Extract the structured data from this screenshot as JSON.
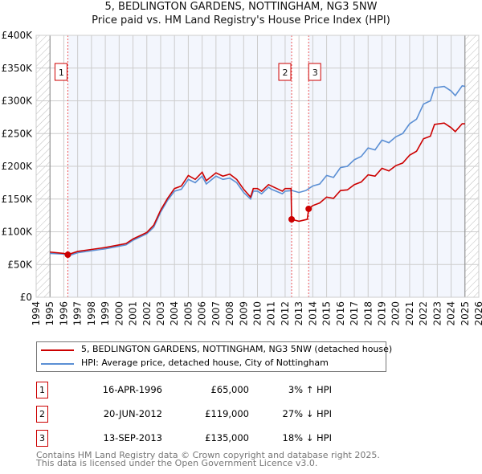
{
  "chart_data": {
    "type": "line",
    "title": "5, BEDLINGTON GARDENS, NOTTINGHAM, NG3 5NW",
    "subtitle": "Price paid vs. HM Land Registry's House Price Index (HPI)",
    "xlabel": "",
    "ylabel": "",
    "xlim": [
      1994,
      2026
    ],
    "ylim": [
      0,
      400000
    ],
    "x_ticks": [
      "1994",
      "1995",
      "1996",
      "1997",
      "1998",
      "1999",
      "2000",
      "2001",
      "2002",
      "2003",
      "2004",
      "2005",
      "2006",
      "2007",
      "2008",
      "2009",
      "2010",
      "2011",
      "2012",
      "2013",
      "2014",
      "2015",
      "2016",
      "2017",
      "2018",
      "2019",
      "2020",
      "2021",
      "2022",
      "2023",
      "2024",
      "2025",
      "2026"
    ],
    "y_ticks": [
      {
        "v": 0,
        "label": "£0"
      },
      {
        "v": 50000,
        "label": "£50K"
      },
      {
        "v": 100000,
        "label": "£100K"
      },
      {
        "v": 150000,
        "label": "£150K"
      },
      {
        "v": 200000,
        "label": "£200K"
      },
      {
        "v": 250000,
        "label": "£250K"
      },
      {
        "v": 300000,
        "label": "£300K"
      },
      {
        "v": 350000,
        "label": "£350K"
      },
      {
        "v": 400000,
        "label": "£400K"
      }
    ],
    "data_range": [
      1995,
      2025
    ],
    "grid": true,
    "series": [
      {
        "name": "5, BEDLINGTON GARDENS, NOTTINGHAM, NG3 5NW (detached house)",
        "color": "#cc0000",
        "points": [
          [
            1995,
            69
          ],
          [
            1996,
            67
          ],
          [
            1996.29,
            65
          ],
          [
            1997,
            70
          ],
          [
            1998,
            73
          ],
          [
            1999,
            76
          ],
          [
            2000,
            80
          ],
          [
            2000.5,
            82
          ],
          [
            2001,
            89
          ],
          [
            2002,
            99
          ],
          [
            2002.5,
            110
          ],
          [
            2003,
            133
          ],
          [
            2003.5,
            151
          ],
          [
            2004,
            166
          ],
          [
            2004.5,
            170
          ],
          [
            2005,
            186
          ],
          [
            2005.5,
            180
          ],
          [
            2006,
            191
          ],
          [
            2006.3,
            178
          ],
          [
            2007,
            190
          ],
          [
            2007.5,
            185
          ],
          [
            2008,
            188
          ],
          [
            2008.5,
            180
          ],
          [
            2009,
            165
          ],
          [
            2009.5,
            153
          ],
          [
            2009.7,
            166
          ],
          [
            2010,
            166
          ],
          [
            2010.3,
            162
          ],
          [
            2010.8,
            172
          ],
          [
            2011,
            170
          ],
          [
            2011.8,
            162
          ],
          [
            2012,
            166
          ],
          [
            2012.43,
            166
          ],
          [
            2012.47,
            119
          ],
          [
            2013,
            116
          ],
          [
            2013.6,
            119
          ],
          [
            2013.7,
            135
          ],
          [
            2014,
            140
          ],
          [
            2014.5,
            144
          ],
          [
            2015,
            153
          ],
          [
            2015.5,
            151
          ],
          [
            2016,
            163
          ],
          [
            2016.5,
            164
          ],
          [
            2017,
            172
          ],
          [
            2017.5,
            176
          ],
          [
            2018,
            187
          ],
          [
            2018.5,
            185
          ],
          [
            2019,
            197
          ],
          [
            2019.5,
            193
          ],
          [
            2020,
            201
          ],
          [
            2020.5,
            205
          ],
          [
            2021,
            217
          ],
          [
            2021.5,
            223
          ],
          [
            2022,
            242
          ],
          [
            2022.5,
            246
          ],
          [
            2022.8,
            264
          ],
          [
            2023.5,
            266
          ],
          [
            2024,
            259
          ],
          [
            2024.3,
            253
          ],
          [
            2024.8,
            265
          ],
          [
            2025,
            265
          ]
        ]
      },
      {
        "name": "HPI: Average price, detached house, City of Nottingham",
        "color": "#5b8fd4",
        "points": [
          [
            1995,
            67
          ],
          [
            1996,
            66
          ],
          [
            1996.29,
            63
          ],
          [
            1997,
            68
          ],
          [
            1998,
            71
          ],
          [
            1999,
            74
          ],
          [
            2000,
            78
          ],
          [
            2000.5,
            80
          ],
          [
            2001,
            87
          ],
          [
            2002,
            97
          ],
          [
            2002.5,
            107
          ],
          [
            2003,
            130
          ],
          [
            2003.5,
            148
          ],
          [
            2004,
            162
          ],
          [
            2004.5,
            165
          ],
          [
            2005,
            180
          ],
          [
            2005.5,
            175
          ],
          [
            2006,
            185
          ],
          [
            2006.3,
            173
          ],
          [
            2007,
            185
          ],
          [
            2007.5,
            180
          ],
          [
            2008,
            182
          ],
          [
            2008.5,
            175
          ],
          [
            2009,
            160
          ],
          [
            2009.5,
            150
          ],
          [
            2009.7,
            162
          ],
          [
            2010,
            162
          ],
          [
            2010.3,
            158
          ],
          [
            2010.8,
            168
          ],
          [
            2011,
            165
          ],
          [
            2011.8,
            158
          ],
          [
            2012,
            162
          ],
          [
            2012.5,
            163
          ],
          [
            2013,
            160
          ],
          [
            2013.5,
            163
          ],
          [
            2014,
            170
          ],
          [
            2014.5,
            173
          ],
          [
            2015,
            186
          ],
          [
            2015.5,
            183
          ],
          [
            2016,
            198
          ],
          [
            2016.5,
            200
          ],
          [
            2017,
            210
          ],
          [
            2017.5,
            215
          ],
          [
            2018,
            228
          ],
          [
            2018.5,
            225
          ],
          [
            2019,
            240
          ],
          [
            2019.5,
            236
          ],
          [
            2020,
            245
          ],
          [
            2020.5,
            250
          ],
          [
            2021,
            265
          ],
          [
            2021.5,
            272
          ],
          [
            2022,
            295
          ],
          [
            2022.5,
            300
          ],
          [
            2022.8,
            320
          ],
          [
            2023.5,
            322
          ],
          [
            2024,
            315
          ],
          [
            2024.3,
            308
          ],
          [
            2024.8,
            323
          ],
          [
            2025,
            322
          ]
        ]
      }
    ],
    "sales": [
      {
        "id": "1",
        "x": 1996.29,
        "price": 65000,
        "date": "16-APR-1996",
        "price_label": "£65,000",
        "hpi": "3% ↑ HPI"
      },
      {
        "id": "2",
        "x": 2012.47,
        "price": 119000,
        "date": "20-JUN-2012",
        "price_label": "£119,000",
        "hpi": "27% ↓ HPI"
      },
      {
        "id": "3",
        "x": 2013.7,
        "price": 135000,
        "date": "13-SEP-2013",
        "price_label": "£135,000",
        "hpi": "18% ↓ HPI"
      }
    ]
  },
  "legend": {
    "red": "5, BEDLINGTON GARDENS, NOTTINGHAM, NG3 5NW (detached house)",
    "blue": "HPI: Average price, detached house, City of Nottingham"
  },
  "footer": {
    "line1": "Contains HM Land Registry data © Crown copyright and database right 2025.",
    "line2": "This data is licensed under the Open Government Licence v3.0."
  }
}
